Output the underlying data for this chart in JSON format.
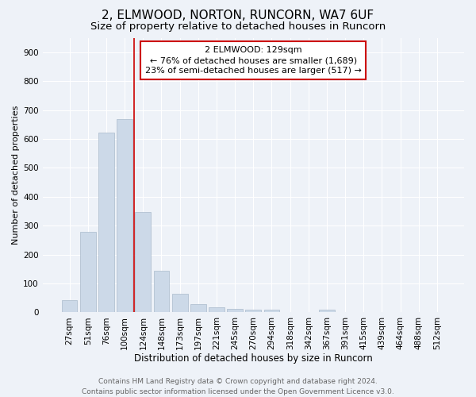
{
  "title1": "2, ELMWOOD, NORTON, RUNCORN, WA7 6UF",
  "title2": "Size of property relative to detached houses in Runcorn",
  "xlabel": "Distribution of detached houses by size in Runcorn",
  "ylabel": "Number of detached properties",
  "categories": [
    "27sqm",
    "51sqm",
    "76sqm",
    "100sqm",
    "124sqm",
    "148sqm",
    "173sqm",
    "197sqm",
    "221sqm",
    "245sqm",
    "270sqm",
    "294sqm",
    "318sqm",
    "342sqm",
    "367sqm",
    "391sqm",
    "415sqm",
    "439sqm",
    "464sqm",
    "488sqm",
    "512sqm"
  ],
  "values": [
    42,
    278,
    622,
    668,
    348,
    145,
    65,
    28,
    18,
    12,
    10,
    8,
    0,
    0,
    8,
    0,
    0,
    0,
    0,
    0,
    0
  ],
  "bar_color": "#ccd9e8",
  "bar_edge_color": "#aabbcc",
  "vline_x_idx": 4,
  "vline_color": "#cc0000",
  "annotation_line1": "2 ELMWOOD: 129sqm",
  "annotation_line2": "← 76% of detached houses are smaller (1,689)",
  "annotation_line3": "23% of semi-detached houses are larger (517) →",
  "annotation_box_facecolor": "#ffffff",
  "annotation_box_edgecolor": "#cc0000",
  "ylim": [
    0,
    950
  ],
  "yticks": [
    0,
    100,
    200,
    300,
    400,
    500,
    600,
    700,
    800,
    900
  ],
  "background_color": "#eef2f8",
  "grid_color": "#ffffff",
  "footer_line1": "Contains HM Land Registry data © Crown copyright and database right 2024.",
  "footer_line2": "Contains public sector information licensed under the Open Government Licence v3.0.",
  "title1_fontsize": 11,
  "title2_fontsize": 9.5,
  "xlabel_fontsize": 8.5,
  "ylabel_fontsize": 8,
  "tick_fontsize": 7.5,
  "annotation_fontsize": 8,
  "footer_fontsize": 6.5
}
